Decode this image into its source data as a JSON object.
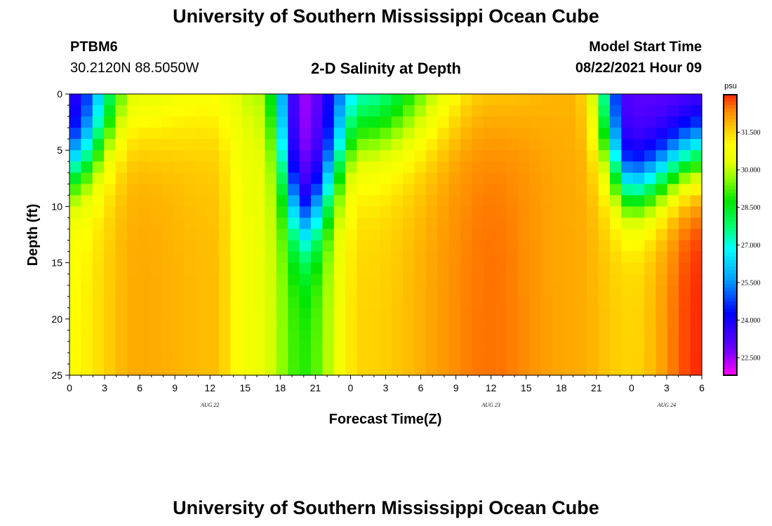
{
  "header": {
    "title_top": "University of Southern Mississippi Ocean Cube",
    "title_bottom": "University of Southern Mississippi Ocean Cube",
    "station_id": "PTBM6",
    "coordinates": "30.2120N  88.5050W",
    "plot_title": "2-D Salinity at Depth",
    "model_start_label": "Model Start Time",
    "model_start_value": "08/22/2021 Hour 09"
  },
  "chart_data": {
    "type": "heatmap",
    "title": "2-D Salinity at Depth",
    "xlabel": "Forecast Time(Z)",
    "ylabel": "Depth (ft)",
    "x_ticks": [
      "0",
      "3",
      "6",
      "9",
      "12",
      "15",
      "18",
      "21",
      "0",
      "3",
      "6",
      "9",
      "12",
      "15",
      "18",
      "21",
      "0",
      "3",
      "6"
    ],
    "x_range_hours": [
      0,
      54
    ],
    "day_labels": [
      {
        "label": "AUG 22",
        "hour": 12
      },
      {
        "label": "AUG 23",
        "hour": 36
      },
      {
        "label": "AUG 24",
        "hour": 51
      }
    ],
    "y_ticks": [
      "0",
      "5",
      "10",
      "15",
      "20",
      "25"
    ],
    "y_range": [
      0,
      25
    ],
    "colorbar": {
      "unit": "psu",
      "ticks": [
        "31.500",
        "30.000",
        "28.500",
        "27.000",
        "25.500",
        "24.000",
        "22.500"
      ],
      "tick_values": [
        31.5,
        30.0,
        28.5,
        27.0,
        25.5,
        24.0,
        22.5
      ],
      "min": 21.8,
      "max": 33.0
    },
    "grid": {
      "columns": 55,
      "rows": 25,
      "description": "Salinity (psu) sampled every forecast hour (0-54) at depth levels 0-25 ft; values reproduced from the depicted field",
      "features": [
        {
          "hour": 0,
          "surface": 23.5,
          "layer_depth": 6.5,
          "layer_width": 1.8,
          "bottom": 31.0
        },
        {
          "hour": 6,
          "surface": 29.5,
          "layer_depth": 1.5,
          "layer_width": 2.5,
          "bottom": 32.0
        },
        {
          "hour": 12,
          "surface": 30.0,
          "layer_depth": 0.5,
          "layer_width": 3.0,
          "bottom": 31.8
        },
        {
          "hour": 16,
          "surface": 29.5,
          "layer_depth": 0.5,
          "layer_width": 3.0,
          "bottom": 30.5
        },
        {
          "hour": 20,
          "surface": 22.5,
          "layer_depth": 11.5,
          "layer_width": 2.2,
          "bottom": 29.0
        },
        {
          "hour": 25,
          "surface": 26.0,
          "layer_depth": 3.0,
          "layer_width": 2.5,
          "bottom": 31.5
        },
        {
          "hour": 36,
          "surface": 31.0,
          "layer_depth": 0.5,
          "layer_width": 3.0,
          "bottom": 32.5
        },
        {
          "hour": 43,
          "surface": 31.8,
          "layer_depth": 0.5,
          "layer_width": 3.0,
          "bottom": 32.0
        },
        {
          "hour": 48,
          "surface": 23.0,
          "layer_depth": 8.5,
          "layer_width": 1.8,
          "bottom": 31.5
        },
        {
          "hour": 54,
          "surface": 22.8,
          "layer_depth": 5.5,
          "layer_width": 2.0,
          "bottom": 33.0
        }
      ]
    }
  }
}
